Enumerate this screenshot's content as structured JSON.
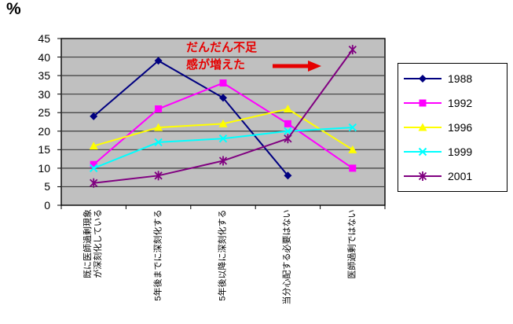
{
  "unit_label": "%",
  "annotation": {
    "text": "だんだん不足\n感が増えた",
    "color": "#e60000"
  },
  "chart_data": {
    "type": "line",
    "title": "",
    "xlabel": "",
    "ylabel": "%",
    "ylim": [
      0,
      45
    ],
    "ytick_step": 5,
    "yticks": [
      0,
      5,
      10,
      15,
      20,
      25,
      30,
      35,
      40,
      45
    ],
    "grid": true,
    "plot_bg": "#c0c0c0",
    "gridline_color": "#3d3d3d",
    "legend_position": "right",
    "categories": [
      "既に医師過剰現象\nが深刻化している",
      "5年後までに深刻化する",
      "5年後以降に深刻化する",
      "当分心配する必要はない",
      "医師過剰ではない"
    ],
    "series": [
      {
        "name": "1988",
        "color": "#000080",
        "marker": "diamond",
        "values": [
          24,
          39,
          29,
          8,
          null
        ]
      },
      {
        "name": "1992",
        "color": "#ff00ff",
        "marker": "square",
        "values": [
          11,
          26,
          33,
          22,
          10
        ]
      },
      {
        "name": "1996",
        "color": "#ffff00",
        "marker": "triangle",
        "values": [
          16,
          21,
          22,
          26,
          15
        ]
      },
      {
        "name": "1999",
        "color": "#00ffff",
        "marker": "x",
        "values": [
          10,
          17,
          18,
          20,
          21
        ]
      },
      {
        "name": "2001",
        "color": "#800080",
        "marker": "asterisk",
        "values": [
          6,
          8,
          12,
          18,
          42
        ]
      }
    ]
  }
}
